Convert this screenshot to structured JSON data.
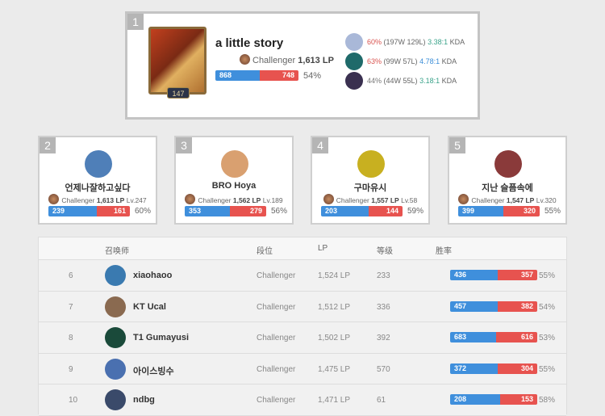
{
  "top": {
    "rank": "1",
    "name": "a little story",
    "level": "147",
    "tier": "Challenger",
    "lp": "1,613 LP",
    "wins": 868,
    "losses": 748,
    "winrate": "54%",
    "champions": [
      {
        "wr": "60%",
        "record": "(197W 129L)",
        "kda": "3.38:1",
        "kda_color": "#3aa38a",
        "wr_color": "#d9534f",
        "suffix": "KDA",
        "icon_color": "#a9b8d8"
      },
      {
        "wr": "63%",
        "record": "(99W 57L)",
        "kda": "4.78:1",
        "kda_color": "#3b8ed8",
        "wr_color": "#d9534f",
        "suffix": "KDA",
        "icon_color": "#1f6a6a"
      },
      {
        "wr": "44%",
        "record": "(44W 55L)",
        "kda": "3.18:1",
        "kda_color": "#3aa38a",
        "wr_color": "#777777",
        "suffix": "KDA",
        "icon_color": "#3a3050"
      }
    ]
  },
  "cards": [
    {
      "rank": "2",
      "name": "언제나잘하고싶다",
      "tier": "Challenger",
      "lp": "1,613 LP",
      "level": "Lv.247",
      "wins": 239,
      "losses": 161,
      "winrate": "60%",
      "avatar_color": "#4f7fb8"
    },
    {
      "rank": "3",
      "name": "BRO Hoya",
      "tier": "Challenger",
      "lp": "1,562 LP",
      "level": "Lv.189",
      "wins": 353,
      "losses": 279,
      "winrate": "56%",
      "avatar_color": "#d9a070"
    },
    {
      "rank": "4",
      "name": "구마유시",
      "tier": "Challenger",
      "lp": "1,557 LP",
      "level": "Lv.58",
      "wins": 203,
      "losses": 144,
      "winrate": "59%",
      "avatar_color": "#c8b020"
    },
    {
      "rank": "5",
      "name": "지난 슬픔속에",
      "tier": "Challenger",
      "lp": "1,547 LP",
      "level": "Lv.320",
      "wins": 399,
      "losses": 320,
      "winrate": "55%",
      "avatar_color": "#8a3a3a"
    }
  ],
  "table": {
    "headers": {
      "summoner": "召唤师",
      "tier": "段位",
      "lp": "LP",
      "level": "等级",
      "winrate": "胜率"
    },
    "rows": [
      {
        "rank": "6",
        "name": "xiaohaoo",
        "tier": "Challenger",
        "lp": "1,524 LP",
        "level": "233",
        "wins": 436,
        "losses": 357,
        "winrate": "55%",
        "avatar_color": "#3a7ab0"
      },
      {
        "rank": "7",
        "name": "KT Ucal",
        "tier": "Challenger",
        "lp": "1,512 LP",
        "level": "336",
        "wins": 457,
        "losses": 382,
        "winrate": "54%",
        "avatar_color": "#8a6a50"
      },
      {
        "rank": "8",
        "name": "T1 Gumayusi",
        "tier": "Challenger",
        "lp": "1,502 LP",
        "level": "392",
        "wins": 683,
        "losses": 616,
        "winrate": "53%",
        "avatar_color": "#1a4a3a"
      },
      {
        "rank": "9",
        "name": "아이스빙수",
        "tier": "Challenger",
        "lp": "1,475 LP",
        "level": "570",
        "wins": 372,
        "losses": 304,
        "winrate": "55%",
        "avatar_color": "#4a70b0"
      },
      {
        "rank": "10",
        "name": "ndbg",
        "tier": "Challenger",
        "lp": "1,471 LP",
        "level": "61",
        "wins": 208,
        "losses": 153,
        "winrate": "58%",
        "avatar_color": "#3a4a6a"
      }
    ]
  },
  "colors": {
    "win": "#3f8fdc",
    "loss": "#e7534f"
  }
}
